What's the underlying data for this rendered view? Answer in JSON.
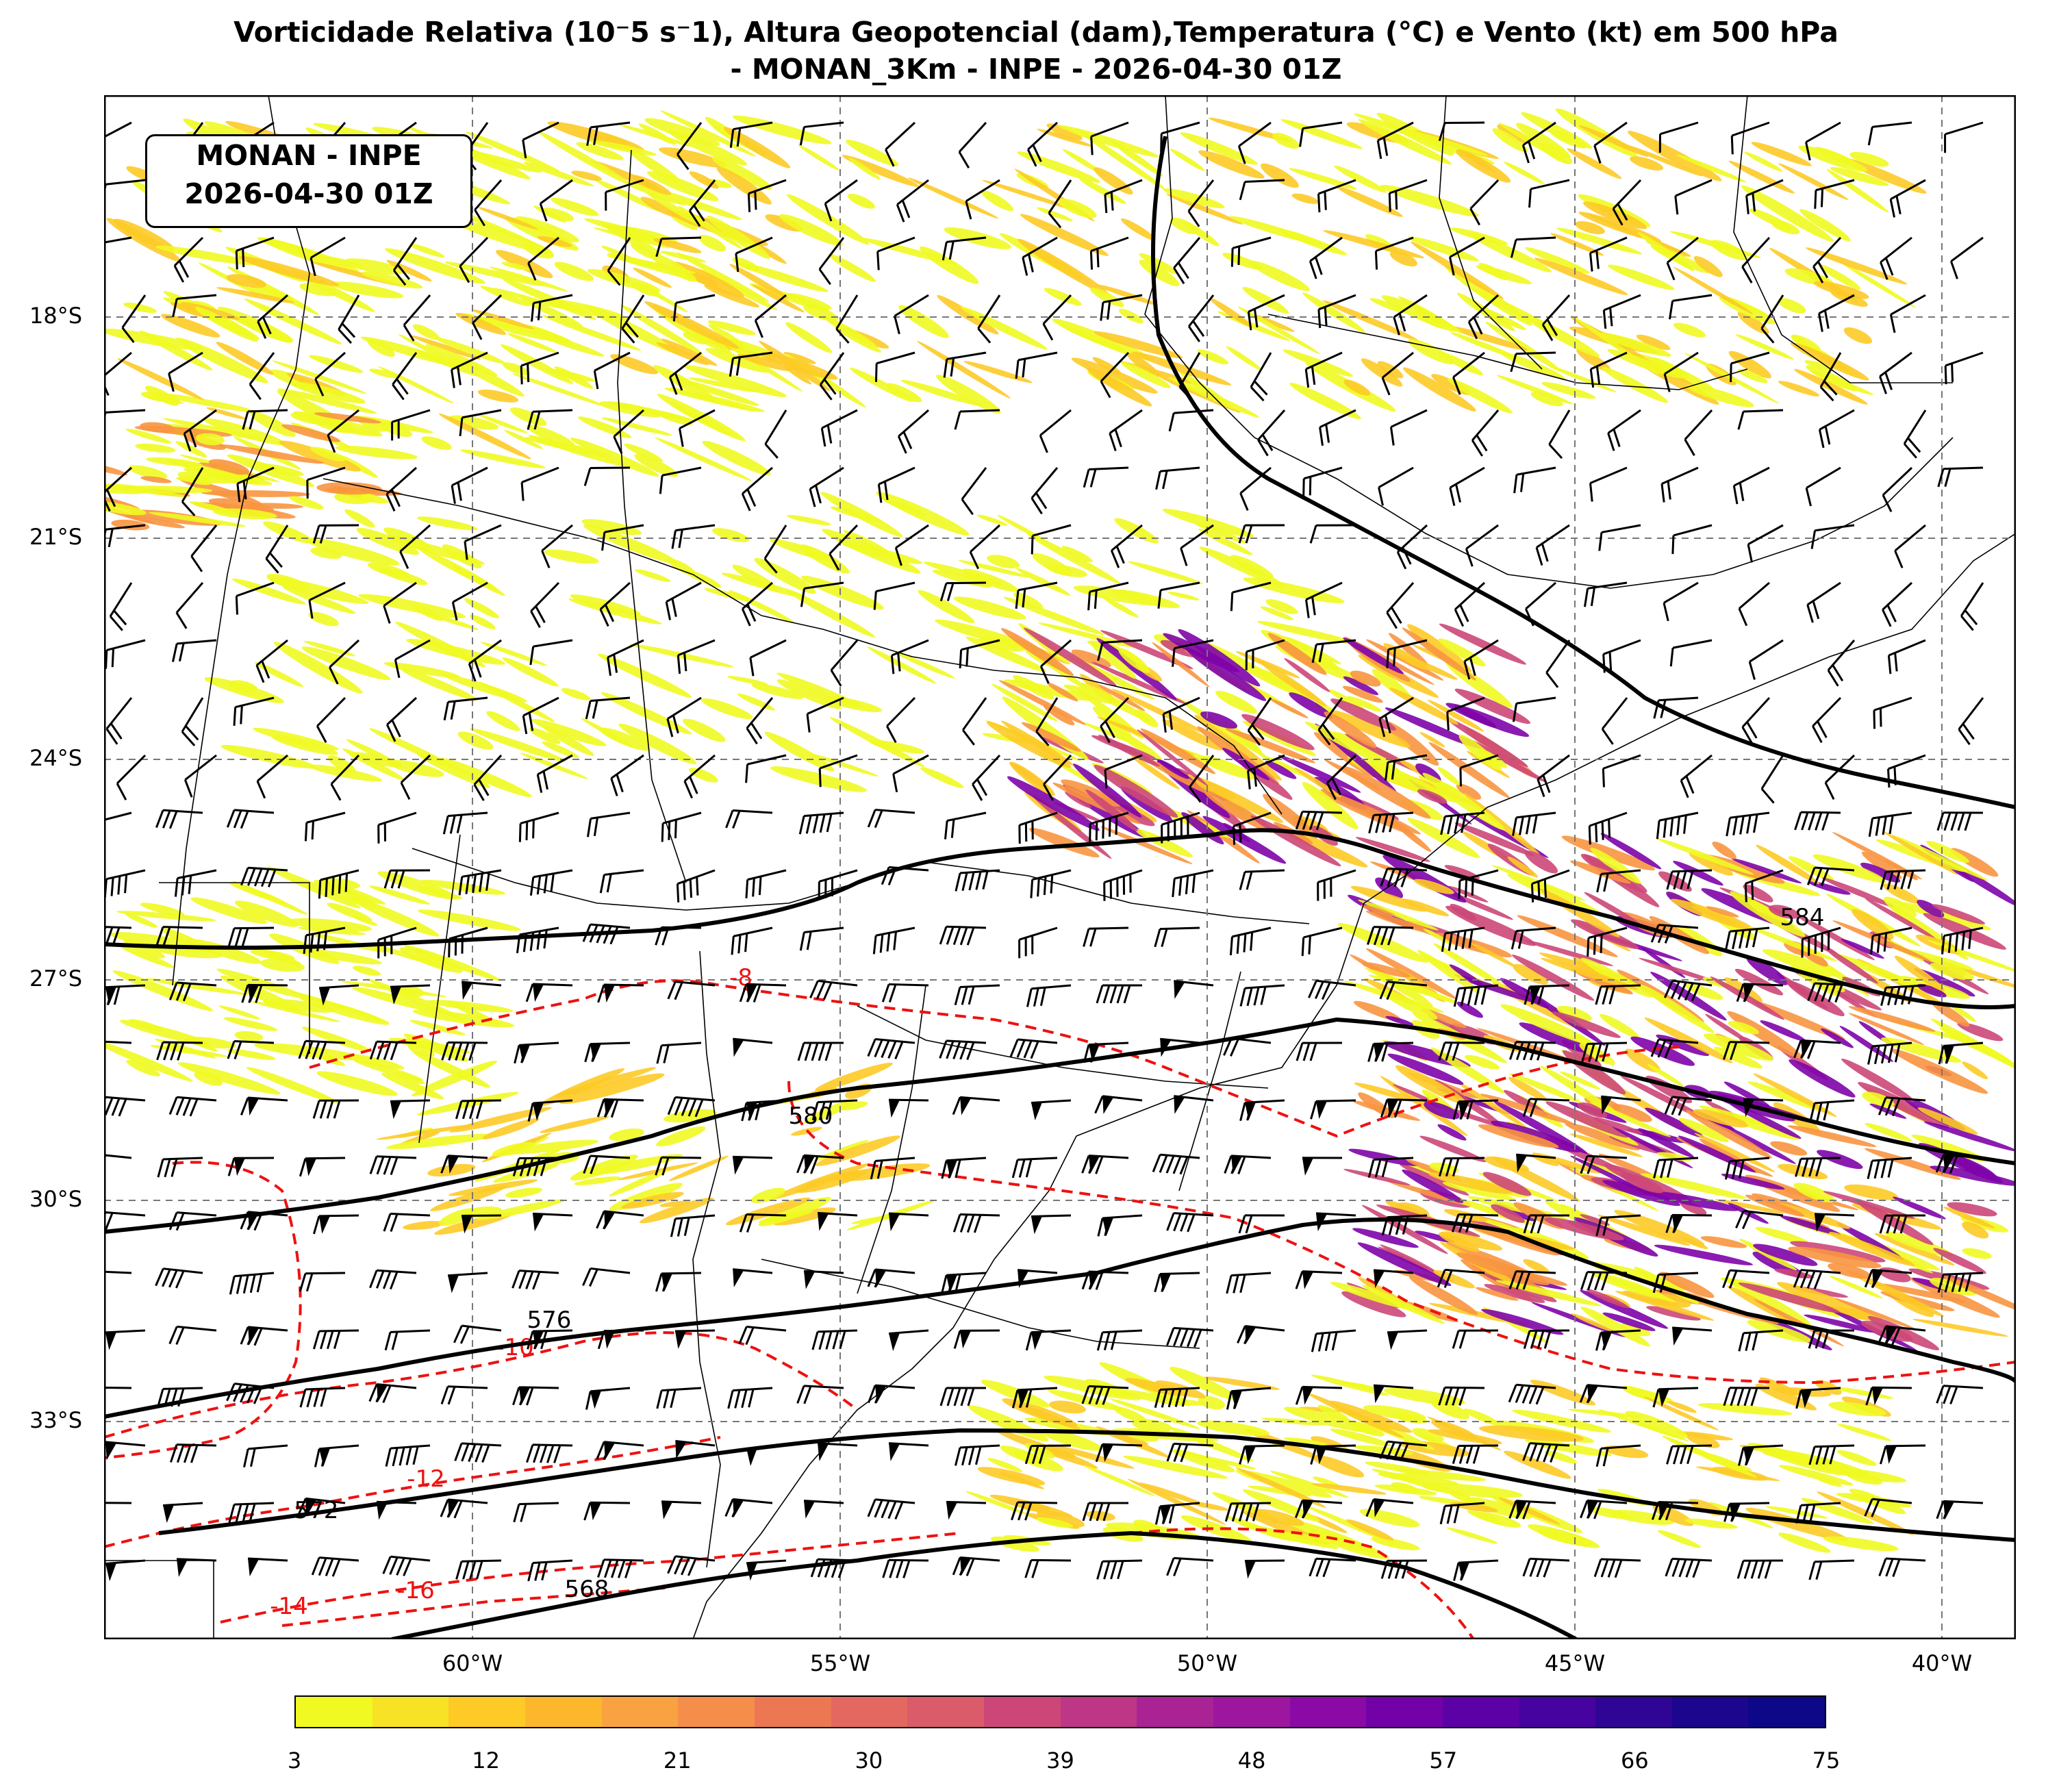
{
  "title": {
    "line1": "Vorticidade Relativa (10⁻5 s⁻1), Altura Geopotencial (dam),Temperatura (°C) e Vento (kt) em 500 hPa",
    "line2": "- MONAN_3Km - INPE - 2026-04-30 01Z"
  },
  "info_box": {
    "line1": "MONAN - INPE",
    "line2": "2026-04-30 01Z"
  },
  "axes": {
    "lat_ticks": [
      "18°S",
      "21°S",
      "24°S",
      "27°S",
      "30°S",
      "33°S"
    ],
    "lon_ticks": [
      "60°W",
      "55°W",
      "50°W",
      "45°W",
      "40°W"
    ],
    "lon_range": [
      -65,
      -39
    ],
    "lat_range": [
      -36,
      -15.1
    ]
  },
  "height_contours": {
    "color": "#000000",
    "labels": [
      "584",
      "580",
      "576",
      "572",
      "568"
    ]
  },
  "temperature_contours": {
    "color": "#ee1111",
    "labels": [
      "-8",
      "-10",
      "-12",
      "-14",
      "-16"
    ]
  },
  "colorbar": {
    "ticks": [
      "3",
      "12",
      "21",
      "30",
      "39",
      "48",
      "57",
      "66",
      "75"
    ],
    "colors": [
      "#f0f921",
      "#f7e225",
      "#fdca26",
      "#fcb72c",
      "#f9a242",
      "#f58e4a",
      "#ec7853",
      "#e3685f",
      "#da5b69",
      "#cc4778",
      "#bd3786",
      "#aa2395",
      "#9c179e",
      "#8b0aa5",
      "#7201a8",
      "#5c01a6",
      "#47039f",
      "#2f0596",
      "#1b068d",
      "#0d0887"
    ]
  },
  "wind_barbs": {
    "color": "#000000"
  }
}
